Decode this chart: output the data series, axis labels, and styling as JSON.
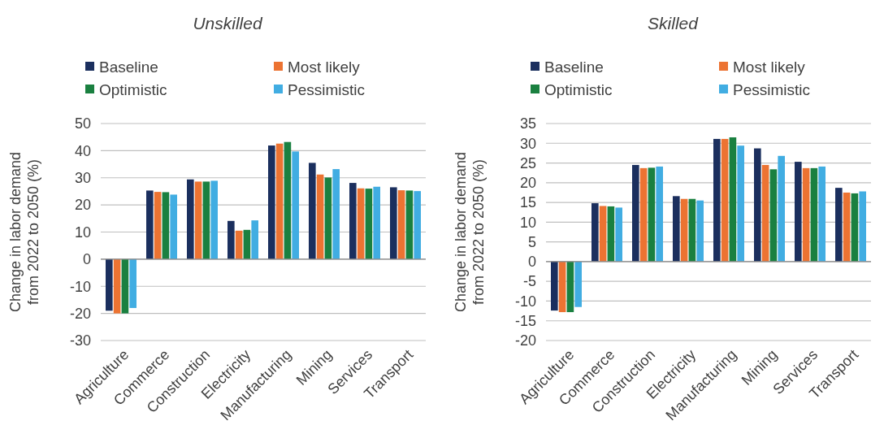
{
  "chart_data": [
    {
      "type": "bar",
      "title": "Unskilled",
      "ylabel": "Change in labor demand from 2022 to 2050 (%)",
      "categories": [
        "Agriculture",
        "Commerce",
        "Construction",
        "Electricity",
        "Manufacturing",
        "Mining",
        "Services",
        "Transport"
      ],
      "series": [
        {
          "name": "Baseline",
          "color": "#1b2f5e",
          "values": [
            -19,
            25.3,
            29.4,
            14.1,
            41.9,
            35.5,
            28.1,
            26.5
          ]
        },
        {
          "name": "Most likely",
          "color": "#ec7332",
          "values": [
            -20,
            24.8,
            28.6,
            10.5,
            42.6,
            31.2,
            26.1,
            25.4
          ]
        },
        {
          "name": "Optimistic",
          "color": "#1a8040",
          "values": [
            -20,
            24.7,
            28.6,
            10.8,
            43.2,
            30.1,
            26.0,
            25.3
          ]
        },
        {
          "name": "Pessimistic",
          "color": "#41ade2",
          "values": [
            -18,
            23.8,
            28.9,
            14.3,
            39.7,
            33.2,
            26.7,
            25.1
          ]
        }
      ],
      "ylim": [
        -30,
        50
      ],
      "yticks": [
        -30,
        -20,
        -10,
        0,
        10,
        20,
        30,
        40,
        50
      ],
      "grid": "y",
      "legend": "top"
    },
    {
      "type": "bar",
      "title": "Skilled",
      "ylabel": "Change in labor demand from 2022 to 2050 (%)",
      "categories": [
        "Agriculture",
        "Commerce",
        "Construction",
        "Electricity",
        "Manufacturing",
        "Mining",
        "Services",
        "Transport"
      ],
      "series": [
        {
          "name": "Baseline",
          "color": "#1b2f5e",
          "values": [
            -12.4,
            14.8,
            24.5,
            16.6,
            31.1,
            28.7,
            25.3,
            18.7
          ]
        },
        {
          "name": "Most likely",
          "color": "#ec7332",
          "values": [
            -12.8,
            14.1,
            23.7,
            15.9,
            31.1,
            24.5,
            23.7,
            17.5
          ]
        },
        {
          "name": "Optimistic",
          "color": "#1a8040",
          "values": [
            -12.8,
            14.0,
            23.8,
            15.9,
            31.5,
            23.4,
            23.7,
            17.3
          ]
        },
        {
          "name": "Pessimistic",
          "color": "#41ade2",
          "values": [
            -11.5,
            13.7,
            24.1,
            15.5,
            29.4,
            26.8,
            24.1,
            17.8
          ]
        }
      ],
      "ylim": [
        -20,
        35
      ],
      "yticks": [
        -20,
        -15,
        -10,
        -5,
        0,
        5,
        10,
        15,
        20,
        25,
        30,
        35
      ],
      "grid": "y",
      "legend": "top"
    }
  ]
}
